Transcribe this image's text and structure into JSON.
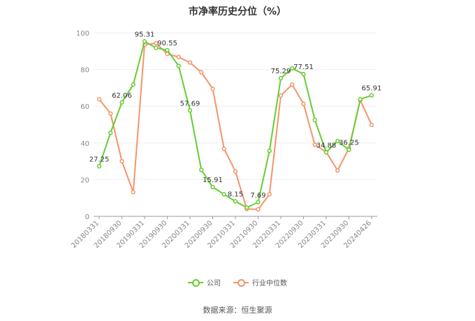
{
  "title": "市净率历史分位（%）",
  "source_label": "数据来源：恒生聚源",
  "chart_data": {
    "type": "line",
    "title": "市净率历史分位（%）",
    "xlabel": "",
    "ylabel": "",
    "ylim": [
      0,
      100
    ],
    "yticks": [
      0,
      20,
      40,
      60,
      80,
      100
    ],
    "x_tick_labels": [
      "20180331",
      "20180930",
      "20190331",
      "20190930",
      "20200331",
      "20200930",
      "20210331",
      "20210930",
      "20220331",
      "20220930",
      "20230331",
      "20230930",
      "20240426"
    ],
    "point_count": 25,
    "grid": true,
    "legend_position": "bottom",
    "series": [
      {
        "name": "公司",
        "color": "#66cc33",
        "values": [
          27.25,
          45.5,
          62.06,
          71.8,
          95.31,
          91.8,
          90.55,
          82.0,
          57.69,
          25.3,
          15.91,
          12.0,
          8.15,
          4.8,
          7.69,
          35.7,
          75.29,
          80.6,
          77.51,
          52.5,
          34.88,
          41.0,
          36.25,
          63.8,
          65.91
        ],
        "labels": {
          "0": "27.25",
          "2": "62.06",
          "4": "95.31",
          "6": "90.55",
          "8": "57.69",
          "10": "15.91",
          "12": "8.15",
          "14": "7.69",
          "16": "75.29",
          "18": "77.51",
          "20": "34.88",
          "22": "36.25",
          "24": "65.91"
        }
      },
      {
        "name": "行业中位数",
        "color": "#f4946a",
        "values": [
          63.8,
          56.0,
          30.0,
          13.2,
          93.5,
          94.3,
          88.5,
          86.8,
          83.8,
          78.5,
          69.5,
          36.8,
          24.5,
          4.0,
          3.8,
          12.0,
          65.8,
          71.8,
          61.3,
          39.0,
          35.0,
          25.0,
          37.0,
          63.3,
          49.8
        ]
      }
    ]
  }
}
